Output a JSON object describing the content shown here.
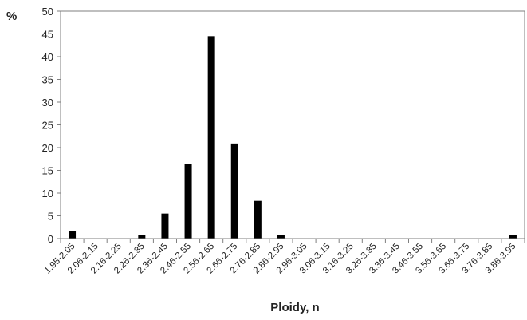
{
  "chart_data": {
    "type": "bar",
    "ylabel": "%",
    "xlabel": "Ploidy, n",
    "ylim": [
      0,
      50
    ],
    "yticks": [
      0,
      5,
      10,
      15,
      20,
      25,
      30,
      35,
      40,
      45,
      50
    ],
    "grid": false,
    "bar_color": "#000000",
    "categories": [
      "1.95-2.05",
      "2.06-2.15",
      "2.16-2.25",
      "2.26-2.35",
      "2.36-2.45",
      "2.46-2.55",
      "2.56-2.65",
      "2.66-2.75",
      "2.76-2.85",
      "2.86-2.95",
      "2.96-3.05",
      "3.06-3.15",
      "3.16-3.25",
      "3.26-3.35",
      "3.36-3.45",
      "3.46-3.55",
      "3.56-3.65",
      "3.66-3.75",
      "3.76-3.85",
      "3.86-3.95"
    ],
    "values": [
      1.7,
      0,
      0,
      0.8,
      5.5,
      16.4,
      44.5,
      20.9,
      8.3,
      0.8,
      0,
      0,
      0,
      0,
      0,
      0,
      0,
      0,
      0,
      0.8
    ]
  }
}
